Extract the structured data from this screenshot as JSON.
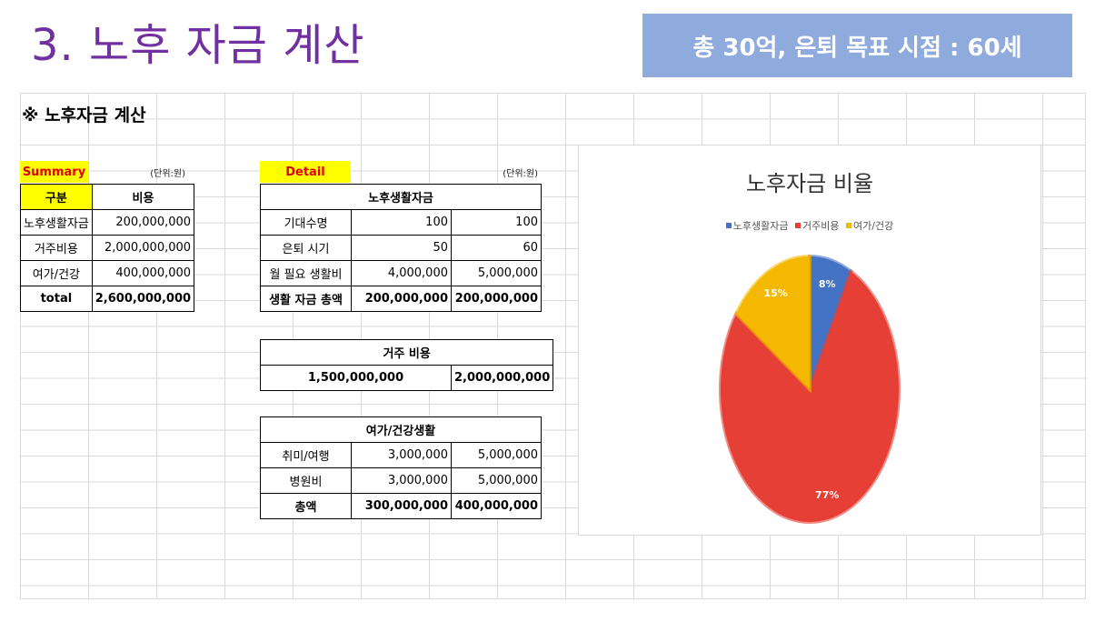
{
  "slide": {
    "title": "3. 노후 자금 계산",
    "goal": "총 30억, 은퇴 목표 시점  : 60세"
  },
  "sheet": {
    "title": "※ 노후자금 계산",
    "summary": {
      "label": "Summary",
      "unit": "(단위:원)",
      "headers": [
        "구분",
        "비용"
      ],
      "rows": [
        {
          "label": "노후생활자금",
          "value": "200,000,000"
        },
        {
          "label": "거주비용",
          "value": "2,000,000,000"
        },
        {
          "label": "여가/건강",
          "value": "400,000,000"
        },
        {
          "label": "total",
          "value": "2,600,000,000"
        }
      ]
    },
    "detail": {
      "label": "Detail",
      "unit": "(단위:원)",
      "living": {
        "header": "노후생활자금",
        "rows": [
          {
            "label": "기대수명",
            "a": "100",
            "b": "100"
          },
          {
            "label": "은퇴 시기",
            "a": "50",
            "b": "60"
          },
          {
            "label": "월 필요 생활비",
            "a": "4,000,000",
            "b": "5,000,000"
          },
          {
            "label": "생활 자금 총액",
            "a": "200,000,000",
            "b": "200,000,000"
          }
        ]
      },
      "housing": {
        "header": "거주 비용",
        "a": "1,500,000,000",
        "b": "2,000,000,000"
      },
      "leisure": {
        "header": "여가/건강생활",
        "rows": [
          {
            "label": "취미/여행",
            "a": "3,000,000",
            "b": "5,000,000"
          },
          {
            "label": "병원비",
            "a": "3,000,000",
            "b": "5,000,000"
          },
          {
            "label": "총액",
            "a": "300,000,000",
            "b": "400,000,000"
          }
        ]
      }
    }
  },
  "chart_data": {
    "type": "pie",
    "title": "노후자금 비율",
    "legend_position": "top",
    "categories": [
      "노후생활자금",
      "거주비용",
      "여가/건강"
    ],
    "values": [
      200000000,
      2000000000,
      400000000
    ],
    "labels": [
      "8%",
      "77%",
      "15%"
    ],
    "colors": [
      "#4472c4",
      "#e53f36",
      "#f5b800"
    ]
  }
}
